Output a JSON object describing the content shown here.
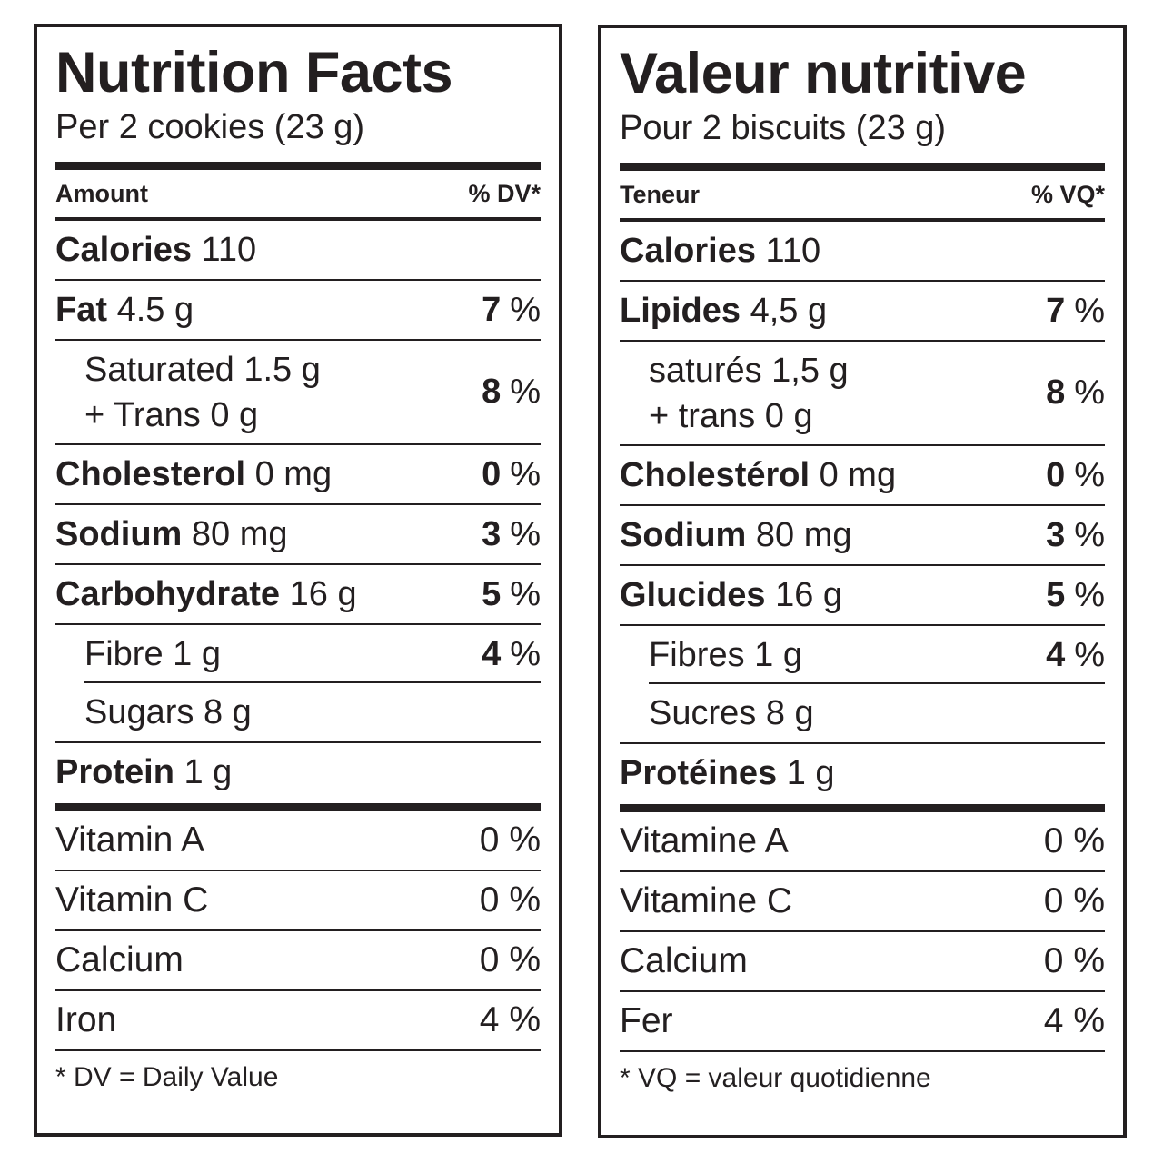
{
  "english": {
    "title": "Nutrition Facts",
    "serving": "Per 2 cookies (23 g)",
    "amount_label": "Amount",
    "dv_label": "% DV*",
    "calories_label": "Calories",
    "calories_value": "110",
    "nutrients": {
      "fat": {
        "name": "Fat",
        "amount": "4.5 g",
        "pct": "7",
        "unit": "%"
      },
      "saturated": {
        "line1": "Saturated 1.5 g",
        "line2": "+ Trans 0 g",
        "pct": "8",
        "unit": "%"
      },
      "cholesterol": {
        "name": "Cholesterol",
        "amount": "0 mg",
        "pct": "0",
        "unit": "%"
      },
      "sodium": {
        "name": "Sodium",
        "amount": "80 mg",
        "pct": "3",
        "unit": "%"
      },
      "carbohydrate": {
        "name": "Carbohydrate",
        "amount": "16 g",
        "pct": "5",
        "unit": "%"
      },
      "fibre": {
        "name": "Fibre",
        "amount": "1 g",
        "pct": "4",
        "unit": "%"
      },
      "sugars": {
        "name": "Sugars",
        "amount": "8 g"
      },
      "protein": {
        "name": "Protein",
        "amount": "1 g"
      }
    },
    "vitamins": [
      {
        "name": "Vitamin A",
        "pct": "0 %"
      },
      {
        "name": "Vitamin C",
        "pct": "0 %"
      },
      {
        "name": "Calcium",
        "pct": "0 %"
      },
      {
        "name": "Iron",
        "pct": "4 %"
      }
    ],
    "footnote": "* DV = Daily Value"
  },
  "french": {
    "title": "Valeur nutritive",
    "serving": "Pour 2 biscuits (23 g)",
    "amount_label": "Teneur",
    "dv_label": "% VQ*",
    "calories_label": "Calories",
    "calories_value": "110",
    "nutrients": {
      "fat": {
        "name": "Lipides",
        "amount": "4,5 g",
        "pct": "7",
        "unit": "%"
      },
      "saturated": {
        "line1": "saturés 1,5 g",
        "line2": "+ trans 0 g",
        "pct": "8",
        "unit": "%"
      },
      "cholesterol": {
        "name": "Cholestérol",
        "amount": "0 mg",
        "pct": "0",
        "unit": "%"
      },
      "sodium": {
        "name": "Sodium",
        "amount": "80 mg",
        "pct": "3",
        "unit": "%"
      },
      "carbohydrate": {
        "name": "Glucides",
        "amount": "16 g",
        "pct": "5",
        "unit": "%"
      },
      "fibre": {
        "name": "Fibres",
        "amount": "1 g",
        "pct": "4",
        "unit": "%"
      },
      "sugars": {
        "name": "Sucres",
        "amount": "8 g"
      },
      "protein": {
        "name": "Protéines",
        "amount": "1 g"
      }
    },
    "vitamins": [
      {
        "name": "Vitamine A",
        "pct": "0 %"
      },
      {
        "name": "Vitamine C",
        "pct": "0 %"
      },
      {
        "name": "Calcium",
        "pct": "0 %"
      },
      {
        "name": "Fer",
        "pct": "4 %"
      }
    ],
    "footnote": "* VQ = valeur quotidienne"
  }
}
